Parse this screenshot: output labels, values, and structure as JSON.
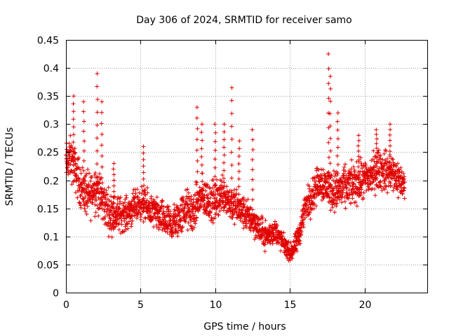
{
  "chart_data": {
    "type": "scatter",
    "title": "Day 306 of 2024, SRMTID for receiver samo",
    "xlabel": "GPS time / hours",
    "ylabel": "SRMTID / TECUs",
    "xlim": [
      0,
      24.2
    ],
    "ylim": [
      0,
      0.45
    ],
    "xticks": [
      0,
      5,
      10,
      15,
      20
    ],
    "xtick_labels": [
      "0",
      "5",
      "10",
      "15",
      "20"
    ],
    "yticks": [
      0,
      0.05,
      0.1,
      0.15,
      0.2,
      0.25,
      0.3,
      0.35,
      0.4,
      0.45
    ],
    "ytick_labels": [
      "0",
      "0.05",
      "0.1",
      "0.15",
      "0.2",
      "0.25",
      "0.3",
      "0.35",
      "0.4",
      "0.45"
    ],
    "grid": true,
    "marker": "plus",
    "marker_color": "#e00000",
    "sample_interval_hours": 0.01,
    "series": [
      {
        "name": "SRMTID",
        "trend": {
          "x": [
            0,
            0.3,
            0.6,
            1,
            1.5,
            2,
            2.3,
            3,
            4,
            5,
            6,
            7,
            7.5,
            8,
            8.5,
            9,
            10,
            10.5,
            11,
            12,
            12.5,
            13,
            13.5,
            14,
            14.5,
            15,
            15.3,
            15.6,
            16,
            17,
            17.5,
            18,
            19,
            20,
            21,
            22,
            22.7
          ],
          "y": [
            0.23,
            0.24,
            0.22,
            0.19,
            0.17,
            0.19,
            0.17,
            0.14,
            0.14,
            0.16,
            0.14,
            0.12,
            0.13,
            0.15,
            0.14,
            0.17,
            0.16,
            0.18,
            0.16,
            0.14,
            0.13,
            0.11,
            0.1,
            0.11,
            0.09,
            0.07,
            0.08,
            0.1,
            0.15,
            0.2,
            0.19,
            0.18,
            0.19,
            0.2,
            0.22,
            0.21,
            0.19
          ]
        },
        "spread_envelope": {
          "x": [
            0,
            2,
            4,
            6,
            8,
            10,
            12,
            14,
            15,
            16,
            18,
            20,
            22,
            22.7
          ],
          "y": [
            0.05,
            0.06,
            0.04,
            0.04,
            0.05,
            0.05,
            0.04,
            0.03,
            0.02,
            0.04,
            0.05,
            0.05,
            0.05,
            0.04
          ]
        },
        "spikes": [
          {
            "x": 0.5,
            "ymax": 0.35
          },
          {
            "x": 1.2,
            "ymax": 0.34
          },
          {
            "x": 2.1,
            "ymax": 0.39
          },
          {
            "x": 2.4,
            "ymax": 0.34
          },
          {
            "x": 3.2,
            "ymax": 0.23
          },
          {
            "x": 5.2,
            "ymax": 0.26
          },
          {
            "x": 8.8,
            "ymax": 0.33
          },
          {
            "x": 9.1,
            "ymax": 0.3
          },
          {
            "x": 10.0,
            "ymax": 0.3
          },
          {
            "x": 10.6,
            "ymax": 0.3
          },
          {
            "x": 11.1,
            "ymax": 0.365
          },
          {
            "x": 11.6,
            "ymax": 0.27
          },
          {
            "x": 12.5,
            "ymax": 0.29
          },
          {
            "x": 17.6,
            "ymax": 0.425
          },
          {
            "x": 17.7,
            "ymax": 0.385
          },
          {
            "x": 18.2,
            "ymax": 0.32
          },
          {
            "x": 19.6,
            "ymax": 0.28
          },
          {
            "x": 20.8,
            "ymax": 0.29
          },
          {
            "x": 21.7,
            "ymax": 0.3
          }
        ]
      }
    ]
  }
}
